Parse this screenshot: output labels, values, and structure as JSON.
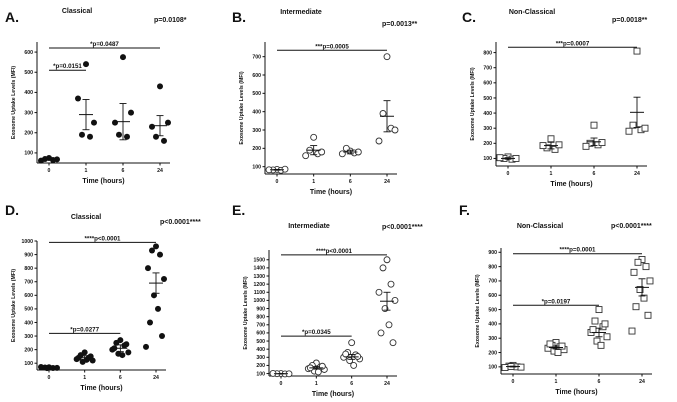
{
  "chart_data": [
    {
      "id": "A",
      "letter": "A.",
      "title": "Classical",
      "type": "scatter",
      "marker": "circle",
      "overall_p": "p=0.0108*",
      "xlabel": "Time (hours)",
      "ylabel": "Exosome Uptake Levels (MFI)",
      "categories": [
        "0",
        "1",
        "6",
        "24"
      ],
      "ylim": [
        50,
        650
      ],
      "yticks": [
        100,
        200,
        300,
        400,
        500,
        600
      ],
      "points": [
        [
          75,
          70,
          65,
          62,
          68
        ],
        [
          540,
          190,
          180,
          370,
          250
        ],
        [
          575,
          190,
          180,
          250,
          300
        ],
        [
          430,
          180,
          160,
          230,
          250
        ]
      ],
      "means": [
        68,
        290,
        255,
        235
      ],
      "sems": [
        3,
        75,
        90,
        50
      ],
      "brackets": [
        {
          "label": "*p=0.0151",
          "from": 0,
          "to": 1,
          "y": 510
        },
        {
          "label": "*p=0.0487",
          "from": 0,
          "to": 3,
          "y": 620
        }
      ]
    },
    {
      "id": "B",
      "letter": "B.",
      "title": "Intermediate",
      "type": "scatter",
      "marker": "circle-open",
      "overall_p": "p=0.0013**",
      "xlabel": "Time (hours)",
      "ylabel": "Exosome Uptake Levels (MFI)",
      "categories": [
        "0",
        "1",
        "6",
        "24"
      ],
      "ylim": [
        60,
        780
      ],
      "yticks": [
        100,
        200,
        300,
        400,
        500,
        600,
        700
      ],
      "points": [
        [
          85,
          82,
          80,
          83,
          86
        ],
        [
          260,
          190,
          170,
          160,
          180
        ],
        [
          185,
          200,
          175,
          170,
          180
        ],
        [
          700,
          390,
          310,
          240,
          300
        ]
      ],
      "means": [
        83,
        190,
        180,
        375
      ],
      "sems": [
        2,
        25,
        10,
        85
      ],
      "brackets": [
        {
          "label": "***p=0.0005",
          "from": 0,
          "to": 3,
          "y": 735
        }
      ]
    },
    {
      "id": "C",
      "letter": "C.",
      "title": "Non-Classical",
      "type": "scatter",
      "marker": "square-open",
      "overall_p": "p=0.0018**",
      "xlabel": "Time (hours)",
      "ylabel": "Exosome Uptake Levels (MFI)",
      "categories": [
        "0",
        "1",
        "6",
        "24"
      ],
      "ylim": [
        50,
        870
      ],
      "yticks": [
        100,
        200,
        300,
        400,
        500,
        600,
        700,
        800
      ],
      "points": [
        [
          110,
          100,
          95,
          105,
          100
        ],
        [
          230,
          170,
          160,
          185,
          190
        ],
        [
          320,
          200,
          190,
          180,
          205
        ],
        [
          810,
          320,
          290,
          280,
          300
        ]
      ],
      "means": [
        100,
        185,
        210,
        405
      ],
      "sems": [
        5,
        22,
        25,
        100
      ],
      "brackets": [
        {
          "label": "***p=0.0007",
          "from": 0,
          "to": 3,
          "y": 835
        }
      ]
    },
    {
      "id": "D",
      "letter": "D.",
      "title": "Classical",
      "type": "scatter",
      "marker": "circle",
      "overall_p": "p<0.0001****",
      "xlabel": "Time (hours)",
      "ylabel": "Exosome Uptake Levels (MFI)",
      "categories": [
        "0",
        "1",
        "6",
        "24"
      ],
      "ylim": [
        50,
        1000
      ],
      "yticks": [
        100,
        200,
        300,
        400,
        500,
        600,
        700,
        800,
        900,
        1000
      ],
      "points": [
        [
          70,
          68,
          65,
          72,
          66,
          64
        ],
        [
          180,
          160,
          140,
          130,
          120,
          110,
          125,
          140,
          150
        ],
        [
          270,
          250,
          230,
          200,
          180,
          170,
          160,
          210,
          240
        ],
        [
          960,
          930,
          900,
          800,
          720,
          600,
          500,
          400,
          300,
          220
        ]
      ],
      "means": [
        68,
        140,
        210,
        690
      ],
      "sems": [
        2,
        15,
        25,
        75
      ],
      "brackets": [
        {
          "label": "*p=0.0277",
          "from": 0,
          "to": 2,
          "y": 320
        },
        {
          "label": "****p<0.0001",
          "from": 0,
          "to": 3,
          "y": 990
        }
      ]
    },
    {
      "id": "E",
      "letter": "E.",
      "title": "Intermediate",
      "type": "scatter",
      "marker": "circle-open",
      "overall_p": "p<0.0001****",
      "xlabel": "Time (hours)",
      "ylabel": "Exosome Uptake Levels (MFI)",
      "categories": [
        "0",
        "1",
        "6",
        "24"
      ],
      "ylim": [
        70,
        1620
      ],
      "yticks": [
        100,
        200,
        300,
        400,
        500,
        600,
        700,
        800,
        900,
        1000,
        1100,
        1200,
        1300,
        1400,
        1500
      ],
      "points": [
        [
          100,
          98,
          95,
          102,
          97
        ],
        [
          230,
          200,
          180,
          160,
          150,
          130,
          120,
          170,
          190
        ],
        [
          480,
          360,
          330,
          300,
          280,
          260,
          200,
          340,
          310
        ],
        [
          1500,
          1400,
          1200,
          1100,
          1000,
          900,
          700,
          600,
          480
        ]
      ],
      "means": [
        98,
        170,
        305,
        990
      ],
      "sems": [
        2,
        15,
        30,
        110
      ],
      "brackets": [
        {
          "label": "*p=0.0345",
          "from": 0,
          "to": 2,
          "y": 560
        },
        {
          "label": "****p<0.0001",
          "from": 0,
          "to": 3,
          "y": 1560
        }
      ]
    },
    {
      "id": "F",
      "letter": "F.",
      "title": "Non-Classical",
      "type": "scatter",
      "marker": "square-open",
      "overall_p": "p<0.0001****",
      "xlabel": "Time (hours)",
      "ylabel": "Exosome Uptake Levels (MFI)",
      "categories": [
        "0",
        "1",
        "6",
        "24"
      ],
      "ylim": [
        50,
        930
      ],
      "yticks": [
        100,
        200,
        300,
        400,
        500,
        600,
        700,
        800,
        900
      ],
      "points": [
        [
          110,
          105,
          100,
          95,
          98,
          102
        ],
        [
          270,
          250,
          240,
          230,
          220,
          210,
          200,
          260,
          245
        ],
        [
          500,
          420,
          380,
          340,
          310,
          280,
          250,
          360,
          400
        ],
        [
          850,
          830,
          800,
          760,
          700,
          640,
          580,
          520,
          460,
          350
        ]
      ],
      "means": [
        102,
        235,
        340,
        655
      ],
      "sems": [
        3,
        10,
        30,
        60
      ],
      "brackets": [
        {
          "label": "*p=0.0197",
          "from": 0,
          "to": 2,
          "y": 530
        },
        {
          "label": "****p=0.0001",
          "from": 0,
          "to": 3,
          "y": 890
        }
      ]
    }
  ]
}
